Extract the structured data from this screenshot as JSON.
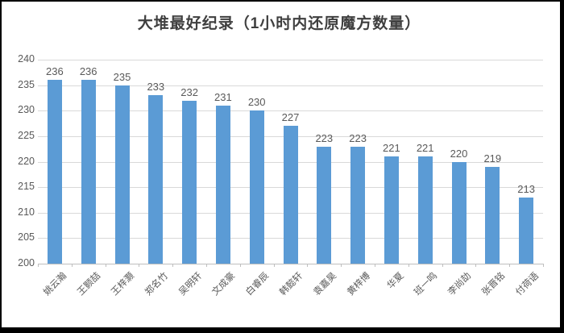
{
  "title": "大堆最好纪录（1小时内还原魔方数量）",
  "colors": {
    "bar": "#5b9bd5",
    "gridline": "#d9d9d9",
    "axis_line": "#bfbfbf",
    "tick_label": "#595959",
    "title": "#3f3f3f",
    "frame": "#000000"
  },
  "chart_data": {
    "type": "bar",
    "title": "大堆最好纪录（1小时内还原魔方数量）",
    "categories": [
      "姚云瀚",
      "王颢喆",
      "王梓灏",
      "郑名竹",
      "吴明轩",
      "文成豪",
      "白睿辰",
      "韩懿轩",
      "袁嘉昊",
      "黄梓博",
      "华夏",
      "班一鸣",
      "李尚劼",
      "张晋铭",
      "付荷语"
    ],
    "values": [
      236,
      236,
      235,
      233,
      232,
      231,
      230,
      227,
      223,
      223,
      221,
      221,
      220,
      219,
      213
    ],
    "value_labels": [
      236,
      236,
      235,
      233,
      232,
      231,
      230,
      227,
      223,
      223,
      221,
      221,
      220,
      219,
      213
    ],
    "xlabel": "",
    "ylabel": "",
    "ylim": [
      200,
      240
    ],
    "yticks": [
      200,
      205,
      210,
      215,
      220,
      225,
      230,
      235,
      240
    ],
    "grid": true,
    "legend": false,
    "x_label_rotation_deg": 45
  }
}
